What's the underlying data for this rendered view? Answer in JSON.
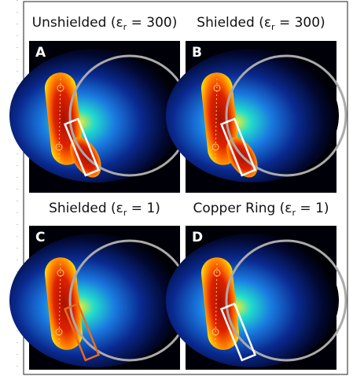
{
  "panels": [
    {
      "letter": "A",
      "title": {
        "before": "Unshielded (ε",
        "sub": "r",
        "after": " = 300)"
      }
    },
    {
      "letter": "B",
      "title": {
        "before": "Shielded (ε",
        "sub": "r",
        "after": " = 300)"
      }
    },
    {
      "letter": "C",
      "title": {
        "before": "Shielded (ε",
        "sub": "r",
        "after": " = 1)"
      }
    },
    {
      "letter": "D",
      "title": {
        "before": "Copper Ring (ε",
        "sub": "r",
        "after": " = 1)"
      }
    }
  ]
}
